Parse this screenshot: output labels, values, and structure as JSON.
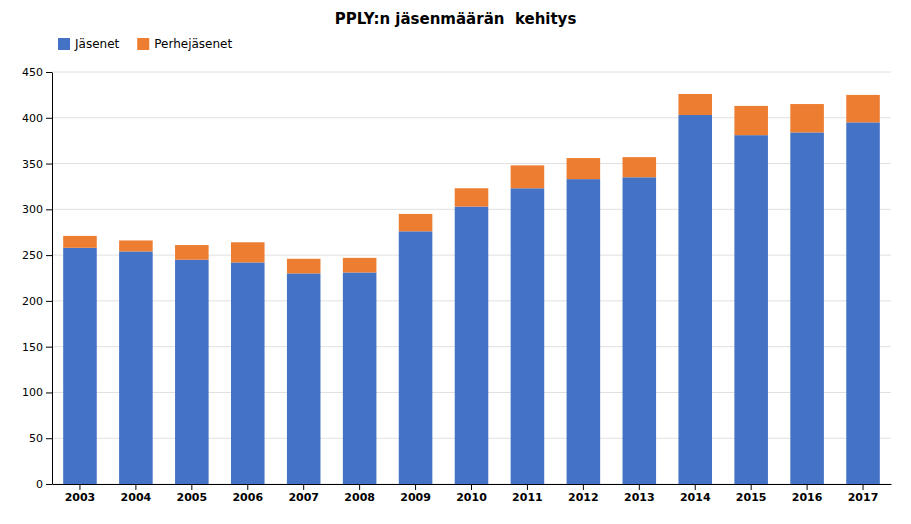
{
  "chart_data": {
    "type": "bar",
    "title": "PPLY:n jäsenmäärän  kehitys",
    "categories": [
      "2003",
      "2004",
      "2005",
      "2006",
      "2007",
      "2008",
      "2009",
      "2010",
      "2011",
      "2012",
      "2013",
      "2014",
      "2015",
      "2016",
      "2017"
    ],
    "series": [
      {
        "name": "Jäsenet",
        "color": "#4472c4",
        "values": [
          258,
          254,
          245,
          242,
          230,
          231,
          276,
          303,
          323,
          333,
          335,
          403,
          381,
          384,
          395
        ]
      },
      {
        "name": "Perhejäsenet",
        "color": "#ed7d31",
        "values": [
          13,
          12,
          16,
          22,
          16,
          16,
          19,
          20,
          25,
          23,
          22,
          23,
          32,
          31,
          30
        ]
      }
    ],
    "stacked": true,
    "ylim": [
      0,
      450
    ],
    "yticks": [
      0,
      50,
      100,
      150,
      200,
      250,
      300,
      350,
      400,
      450
    ],
    "grid": true,
    "legend": "upper left"
  }
}
